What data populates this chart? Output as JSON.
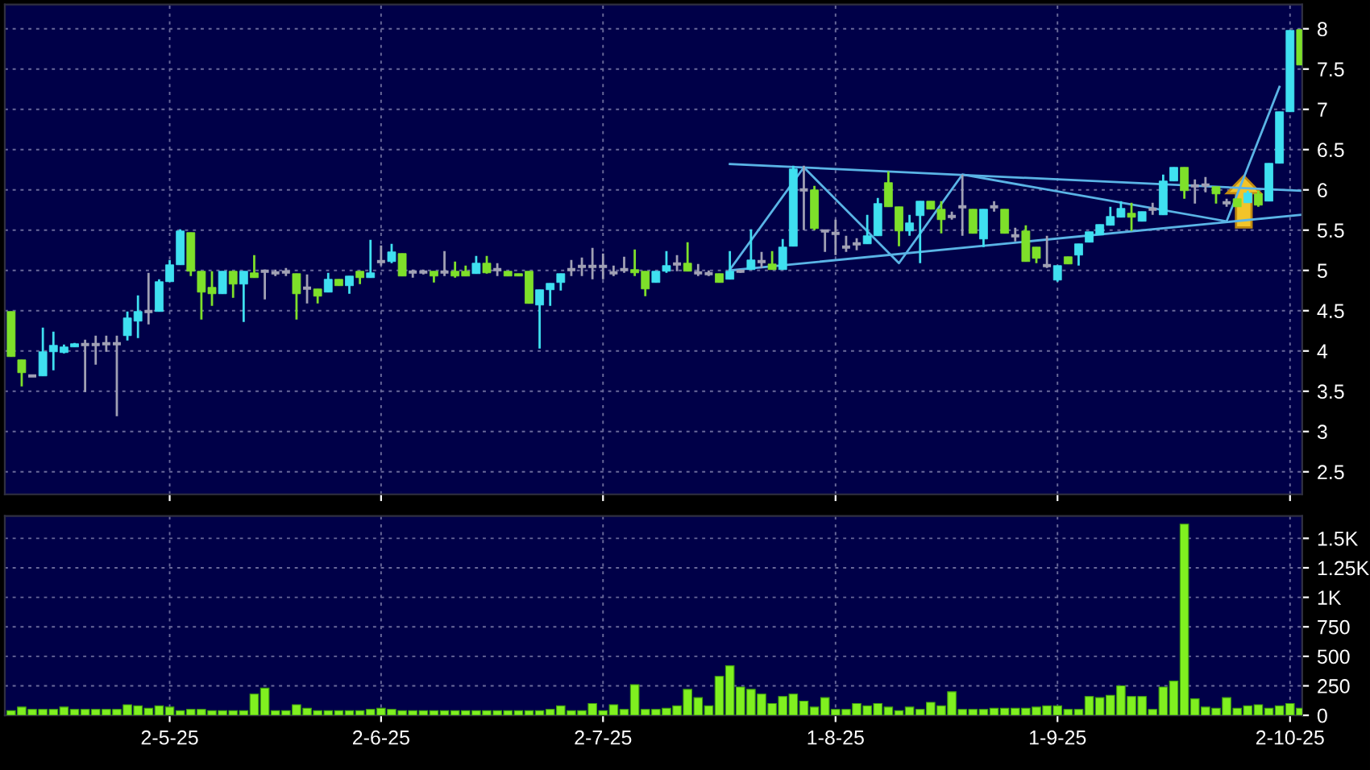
{
  "chart_data": [
    {
      "type": "candlestick",
      "tick_labels": "y",
      "grid": true,
      "ylim": [
        2.22,
        8.3
      ],
      "yticks": [
        2.5,
        3,
        3.5,
        4,
        4.5,
        5,
        5.5,
        6,
        6.5,
        7,
        7.5,
        8
      ],
      "categories": [
        null,
        null,
        null,
        null,
        null,
        null,
        null,
        null,
        null,
        null,
        null,
        null,
        null,
        null,
        null,
        null,
        null,
        null,
        null,
        null,
        null,
        null,
        null,
        null,
        null,
        null,
        null,
        null,
        null,
        null,
        null,
        null,
        null,
        null,
        null,
        null,
        null,
        null,
        null,
        null,
        null,
        null,
        null,
        null,
        null,
        null,
        null,
        null,
        null,
        null,
        null,
        null,
        null,
        null,
        null,
        null,
        null,
        null,
        null,
        null,
        null,
        null,
        null,
        null,
        null,
        null,
        null,
        null,
        null,
        null,
        null,
        null,
        null,
        null,
        null,
        null,
        null,
        null,
        null,
        null,
        null,
        null,
        null,
        null,
        null,
        null,
        null,
        null,
        null,
        null,
        null,
        null,
        null,
        null,
        null,
        null,
        null,
        null,
        null,
        null,
        null,
        null,
        null,
        null,
        null,
        null,
        null,
        null,
        null,
        null,
        null,
        null,
        null,
        null,
        null,
        null,
        null,
        null,
        null,
        null,
        null,
        null,
        null
      ],
      "series": [
        {
          "type": "candlestick",
          "ohlc": [
            [
              4.49,
              4.49,
              3.93,
              3.93
            ],
            [
              3.89,
              3.89,
              3.56,
              3.73
            ],
            [
              3.69,
              3.7,
              3.68,
              3.69
            ],
            [
              3.69,
              4.29,
              3.69,
              3.99
            ],
            [
              3.99,
              4.24,
              3.76,
              4.07
            ],
            [
              3.98,
              4.08,
              3.97,
              4.05
            ],
            [
              4.05,
              4.1,
              4.05,
              4.09
            ],
            [
              4.08,
              4.14,
              3.49,
              4.08
            ],
            [
              4.08,
              4.19,
              3.83,
              4.08
            ],
            [
              4.09,
              4.19,
              3.99,
              4.09
            ],
            [
              4.09,
              4.19,
              3.19,
              4.09
            ],
            [
              4.19,
              4.49,
              4.13,
              4.41
            ],
            [
              4.37,
              4.69,
              4.16,
              4.49
            ],
            [
              4.49,
              4.97,
              4.33,
              4.49
            ],
            [
              4.49,
              4.89,
              4.49,
              4.86
            ],
            [
              4.86,
              5.13,
              4.86,
              5.07
            ],
            [
              5.07,
              5.51,
              5.07,
              5.49
            ],
            [
              5.47,
              5.47,
              4.93,
              4.99
            ],
            [
              4.99,
              4.99,
              4.39,
              4.73
            ],
            [
              4.79,
              4.99,
              4.56,
              4.71
            ],
            [
              4.71,
              4.99,
              4.71,
              4.99
            ],
            [
              4.99,
              4.99,
              4.66,
              4.83
            ],
            [
              4.83,
              4.99,
              4.36,
              4.99
            ],
            [
              4.97,
              5.19,
              4.91,
              4.91
            ],
            [
              4.99,
              5.01,
              4.64,
              4.99
            ],
            [
              4.97,
              5.01,
              4.93,
              4.97
            ],
            [
              4.98,
              5.03,
              4.93,
              4.98
            ],
            [
              4.96,
              4.96,
              4.39,
              4.71
            ],
            [
              4.78,
              4.95,
              4.59,
              4.78
            ],
            [
              4.77,
              4.77,
              4.59,
              4.68
            ],
            [
              4.73,
              4.97,
              4.73,
              4.89
            ],
            [
              4.89,
              4.89,
              4.81,
              4.81
            ],
            [
              4.81,
              4.93,
              4.71,
              4.93
            ],
            [
              4.99,
              4.99,
              4.83,
              4.91
            ],
            [
              4.91,
              5.38,
              4.91,
              4.97
            ],
            [
              5.11,
              5.31,
              5.06,
              5.11
            ],
            [
              5.11,
              5.33,
              5.09,
              5.23
            ],
            [
              5.21,
              5.21,
              4.93,
              4.93
            ],
            [
              4.98,
              5.01,
              4.91,
              4.98
            ],
            [
              4.98,
              5.01,
              4.95,
              4.98
            ],
            [
              4.99,
              4.99,
              4.85,
              4.93
            ],
            [
              4.98,
              5.24,
              4.93,
              4.98
            ],
            [
              4.99,
              5.11,
              4.91,
              4.93
            ],
            [
              4.99,
              5.06,
              4.93,
              4.93
            ],
            [
              4.96,
              5.18,
              4.96,
              5.09
            ],
            [
              5.09,
              5.18,
              4.96,
              4.97
            ],
            [
              5.01,
              5.09,
              4.93,
              5.01
            ],
            [
              4.99,
              4.99,
              4.93,
              4.93
            ],
            [
              4.96,
              4.96,
              4.93,
              4.93
            ],
            [
              4.99,
              4.99,
              4.59,
              4.59
            ],
            [
              4.57,
              4.76,
              4.03,
              4.76
            ],
            [
              4.76,
              4.84,
              4.56,
              4.84
            ],
            [
              4.85,
              4.96,
              4.75,
              4.96
            ],
            [
              5.01,
              5.13,
              4.93,
              5.01
            ],
            [
              5.05,
              5.16,
              4.93,
              5.05
            ],
            [
              5.05,
              5.28,
              4.89,
              5.05
            ],
            [
              5.05,
              5.21,
              4.89,
              5.05
            ],
            [
              4.97,
              5.06,
              4.93,
              4.97
            ],
            [
              5.01,
              5.17,
              4.97,
              5.01
            ],
            [
              5.01,
              5.26,
              4.93,
              4.97
            ],
            [
              4.99,
              4.99,
              4.68,
              4.77
            ],
            [
              4.85,
              4.99,
              4.85,
              4.99
            ],
            [
              4.99,
              5.24,
              4.97,
              5.06
            ],
            [
              5.08,
              5.19,
              4.99,
              5.08
            ],
            [
              5.09,
              5.35,
              4.99,
              4.99
            ],
            [
              4.97,
              5.08,
              4.93,
              4.97
            ],
            [
              4.96,
              5.0,
              4.93,
              4.96
            ],
            [
              4.96,
              4.96,
              4.85,
              4.85
            ],
            [
              4.89,
              5.24,
              4.89,
              4.99
            ],
            [
              4.99,
              5.01,
              4.97,
              4.99
            ],
            [
              5.01,
              5.51,
              5.01,
              5.13
            ],
            [
              5.11,
              5.23,
              5.03,
              5.11
            ],
            [
              5.08,
              5.24,
              5.01,
              5.01
            ],
            [
              5.01,
              5.39,
              5.01,
              5.29
            ],
            [
              5.3,
              6.3,
              5.3,
              6.26
            ],
            [
              6.0,
              6.3,
              5.5,
              6.0
            ],
            [
              6.0,
              6.05,
              5.5,
              5.52
            ],
            [
              5.49,
              5.5,
              5.23,
              5.49
            ],
            [
              5.46,
              5.63,
              5.19,
              5.46
            ],
            [
              5.29,
              5.43,
              5.23,
              5.29
            ],
            [
              5.33,
              5.4,
              5.25,
              5.33
            ],
            [
              5.33,
              5.69,
              5.33,
              5.43
            ],
            [
              5.43,
              5.9,
              5.43,
              5.83
            ],
            [
              6.09,
              6.23,
              5.79,
              5.79
            ],
            [
              5.79,
              5.79,
              5.3,
              5.49
            ],
            [
              5.49,
              5.69,
              5.43,
              5.59
            ],
            [
              5.68,
              5.86,
              5.09,
              5.86
            ],
            [
              5.86,
              5.86,
              5.76,
              5.76
            ],
            [
              5.76,
              5.86,
              5.46,
              5.63
            ],
            [
              5.67,
              5.73,
              5.63,
              5.67
            ],
            [
              5.79,
              6.19,
              5.43,
              5.79
            ],
            [
              5.76,
              5.76,
              5.46,
              5.46
            ],
            [
              5.39,
              5.76,
              5.29,
              5.76
            ],
            [
              5.79,
              5.86,
              5.73,
              5.79
            ],
            [
              5.76,
              5.76,
              5.46,
              5.46
            ],
            [
              5.43,
              5.53,
              5.36,
              5.43
            ],
            [
              5.49,
              5.56,
              5.11,
              5.11
            ],
            [
              5.29,
              5.29,
              5.09,
              5.15
            ],
            [
              5.06,
              5.43,
              5.03,
              5.06
            ],
            [
              4.88,
              5.06,
              4.86,
              5.06
            ],
            [
              5.17,
              5.17,
              5.08,
              5.08
            ],
            [
              5.19,
              5.33,
              5.06,
              5.33
            ],
            [
              5.35,
              5.48,
              5.35,
              5.48
            ],
            [
              5.44,
              5.57,
              5.44,
              5.57
            ],
            [
              5.56,
              5.79,
              5.56,
              5.67
            ],
            [
              5.66,
              5.86,
              5.66,
              5.77
            ],
            [
              5.71,
              5.84,
              5.49,
              5.66
            ],
            [
              5.61,
              5.73,
              5.61,
              5.73
            ],
            [
              5.76,
              5.84,
              5.69,
              5.76
            ],
            [
              5.69,
              6.19,
              5.69,
              6.11
            ],
            [
              6.11,
              6.28,
              6.11,
              6.28
            ],
            [
              6.28,
              6.28,
              5.89,
              5.99
            ],
            [
              6.05,
              6.13,
              5.83,
              6.05
            ],
            [
              6.06,
              6.16,
              5.97,
              6.06
            ],
            [
              6.04,
              6.04,
              5.83,
              5.95
            ],
            [
              5.84,
              5.89,
              5.79,
              5.84
            ],
            [
              5.89,
              5.89,
              5.79,
              5.79
            ],
            [
              5.84,
              5.99,
              5.84,
              5.96
            ],
            [
              5.95,
              5.99,
              5.79,
              5.81
            ],
            [
              5.86,
              6.33,
              5.86,
              6.33
            ],
            [
              6.33,
              6.97,
              6.33,
              6.97
            ],
            [
              6.97,
              7.98,
              6.97,
              7.98
            ],
            [
              7.99,
              7.99,
              7.55,
              7.55
            ]
          ],
          "colors": [
            "#7ee02a",
            "#7ee02a",
            "#a0a0b4",
            "#3fe0f0",
            "#3fe0f0",
            "#3fe0f0",
            "#3fe0f0",
            "#a0a0b4",
            "#a0a0b4",
            "#a0a0b4",
            "#a0a0b4",
            "#3fe0f0",
            "#3fe0f0",
            "#a0a0b4",
            "#3fe0f0",
            "#3fe0f0",
            "#3fe0f0",
            "#7ee02a",
            "#7ee02a",
            "#7ee02a",
            "#3fe0f0",
            "#7ee02a",
            "#3fe0f0",
            "#7ee02a",
            "#a0a0b4",
            "#a0a0b4",
            "#a0a0b4",
            "#7ee02a",
            "#a0a0b4",
            "#7ee02a",
            "#3fe0f0",
            "#7ee02a",
            "#3fe0f0",
            "#7ee02a",
            "#3fe0f0",
            "#a0a0b4",
            "#3fe0f0",
            "#7ee02a",
            "#a0a0b4",
            "#a0a0b4",
            "#7ee02a",
            "#a0a0b4",
            "#7ee02a",
            "#7ee02a",
            "#3fe0f0",
            "#7ee02a",
            "#a0a0b4",
            "#7ee02a",
            "#7ee02a",
            "#7ee02a",
            "#3fe0f0",
            "#3fe0f0",
            "#3fe0f0",
            "#a0a0b4",
            "#a0a0b4",
            "#a0a0b4",
            "#a0a0b4",
            "#a0a0b4",
            "#a0a0b4",
            "#7ee02a",
            "#7ee02a",
            "#3fe0f0",
            "#3fe0f0",
            "#a0a0b4",
            "#7ee02a",
            "#a0a0b4",
            "#a0a0b4",
            "#7ee02a",
            "#3fe0f0",
            "#a0a0b4",
            "#3fe0f0",
            "#a0a0b4",
            "#7ee02a",
            "#3fe0f0",
            "#3fe0f0",
            "#a0a0b4",
            "#7ee02a",
            "#a0a0b4",
            "#a0a0b4",
            "#a0a0b4",
            "#a0a0b4",
            "#3fe0f0",
            "#3fe0f0",
            "#7ee02a",
            "#7ee02a",
            "#3fe0f0",
            "#3fe0f0",
            "#7ee02a",
            "#7ee02a",
            "#a0a0b4",
            "#a0a0b4",
            "#7ee02a",
            "#3fe0f0",
            "#a0a0b4",
            "#7ee02a",
            "#a0a0b4",
            "#7ee02a",
            "#7ee02a",
            "#a0a0b4",
            "#3fe0f0",
            "#7ee02a",
            "#3fe0f0",
            "#3fe0f0",
            "#3fe0f0",
            "#3fe0f0",
            "#3fe0f0",
            "#7ee02a",
            "#3fe0f0",
            "#a0a0b4",
            "#3fe0f0",
            "#3fe0f0",
            "#7ee02a",
            "#a0a0b4",
            "#a0a0b4",
            "#7ee02a",
            "#a0a0b4",
            "#7ee02a",
            "#3fe0f0",
            "#7ee02a",
            "#3fe0f0",
            "#3fe0f0",
            "#3fe0f0",
            "#7ee02a"
          ]
        },
        {
          "type": "line",
          "color": "#5ab4e6",
          "values": [
            null,
            null,
            null,
            null,
            null,
            null,
            null,
            null,
            null,
            null,
            null,
            null,
            null,
            null,
            null,
            null,
            null,
            null,
            null,
            null,
            null,
            null,
            null,
            null,
            null,
            null,
            null,
            null,
            null,
            null,
            null,
            null,
            null,
            null,
            null,
            null,
            null,
            null,
            null,
            null,
            null,
            null,
            null,
            null,
            null,
            null,
            null,
            null,
            null,
            null,
            null,
            null,
            null,
            null,
            null,
            null,
            null,
            null,
            null,
            null,
            null,
            null,
            null,
            null,
            null,
            null,
            null,
            null,
            6.32,
            null,
            null,
            null,
            null,
            null,
            null,
            null,
            null,
            null,
            null,
            null,
            null,
            null,
            null,
            null,
            null,
            null,
            null,
            null,
            null,
            null,
            null,
            null,
            null,
            null,
            null,
            null,
            null,
            null,
            null,
            null,
            null,
            null,
            null,
            null,
            null,
            null,
            null,
            null,
            null,
            null,
            null,
            null,
            null,
            null,
            null,
            null,
            null,
            null,
            null,
            null,
            null,
            null,
            5.99
          ]
        },
        {
          "type": "line",
          "color": "#5ab4e6",
          "values": [
            null,
            null,
            null,
            null,
            null,
            null,
            null,
            null,
            null,
            null,
            null,
            null,
            null,
            null,
            null,
            null,
            null,
            null,
            null,
            null,
            null,
            null,
            null,
            null,
            null,
            null,
            null,
            null,
            null,
            null,
            null,
            null,
            null,
            null,
            null,
            null,
            null,
            null,
            null,
            null,
            null,
            null,
            null,
            null,
            null,
            null,
            null,
            null,
            null,
            null,
            null,
            null,
            null,
            null,
            null,
            null,
            null,
            null,
            null,
            null,
            null,
            null,
            null,
            null,
            null,
            null,
            null,
            null,
            5.0,
            null,
            null,
            null,
            null,
            null,
            null,
            null,
            null,
            null,
            null,
            null,
            null,
            null,
            null,
            null,
            null,
            null,
            null,
            null,
            null,
            null,
            null,
            null,
            null,
            null,
            null,
            null,
            null,
            null,
            null,
            null,
            null,
            null,
            null,
            null,
            null,
            null,
            null,
            null,
            null,
            null,
            null,
            null,
            null,
            null,
            null,
            null,
            null,
            null,
            null,
            null,
            null,
            null,
            5.69
          ]
        },
        {
          "type": "line",
          "color": "#5ab4e6",
          "values": [
            null,
            null,
            null,
            null,
            null,
            null,
            null,
            null,
            null,
            null,
            null,
            null,
            null,
            null,
            null,
            null,
            null,
            null,
            null,
            null,
            null,
            null,
            null,
            null,
            null,
            null,
            null,
            null,
            null,
            null,
            null,
            null,
            null,
            null,
            null,
            null,
            null,
            null,
            null,
            null,
            null,
            null,
            null,
            null,
            null,
            null,
            null,
            null,
            null,
            null,
            null,
            null,
            null,
            null,
            null,
            null,
            null,
            null,
            null,
            null,
            null,
            null,
            null,
            null,
            null,
            null,
            null,
            null,
            5.01,
            null,
            null,
            null,
            null,
            null,
            null,
            6.28,
            null,
            null,
            null,
            null,
            null,
            null,
            null,
            null,
            5.09,
            null,
            null,
            null,
            null,
            null,
            6.19,
            null,
            null,
            null,
            null,
            null,
            null,
            null,
            null,
            null,
            null,
            null,
            null,
            null,
            null,
            null,
            null,
            null,
            null,
            null,
            null,
            null,
            null,
            null,
            null,
            5.61,
            null,
            null,
            null,
            null,
            7.28,
            null,
            null
          ]
        }
      ]
    },
    {
      "type": "bar",
      "grid": true,
      "color": "#80f020",
      "ylim": [
        0,
        1690
      ],
      "yticks": [
        0,
        250,
        500,
        750,
        {
          "value": 1000,
          "label": "1K"
        },
        {
          "value": 1250,
          "label": "1.25K"
        },
        {
          "value": 1500,
          "label": "1.5K"
        }
      ],
      "categories": [
        null,
        null,
        null,
        null,
        null,
        null,
        null,
        null,
        null,
        null,
        null,
        null,
        null,
        null,
        null,
        "2-5-25",
        null,
        null,
        null,
        null,
        null,
        null,
        null,
        null,
        null,
        null,
        null,
        null,
        null,
        null,
        null,
        null,
        null,
        null,
        null,
        "2-6-25",
        null,
        null,
        null,
        null,
        null,
        null,
        null,
        null,
        null,
        null,
        null,
        null,
        null,
        null,
        null,
        null,
        null,
        null,
        null,
        null,
        "2-7-25",
        null,
        null,
        null,
        null,
        null,
        null,
        null,
        null,
        null,
        null,
        null,
        null,
        null,
        null,
        null,
        null,
        null,
        null,
        null,
        null,
        null,
        "1-8-25",
        null,
        null,
        null,
        null,
        null,
        null,
        null,
        null,
        null,
        null,
        null,
        null,
        null,
        null,
        null,
        null,
        null,
        null,
        null,
        null,
        "1-9-25",
        null,
        null,
        null,
        null,
        null,
        null,
        null,
        null,
        null,
        null,
        null,
        null,
        null,
        null,
        null,
        null,
        null,
        null,
        null,
        null,
        null,
        "2-10-25",
        null
      ],
      "values": [
        40,
        70,
        50,
        50,
        50,
        70,
        50,
        50,
        50,
        50,
        50,
        90,
        80,
        60,
        80,
        70,
        40,
        50,
        50,
        40,
        40,
        40,
        40,
        180,
        230,
        40,
        40,
        90,
        60,
        40,
        40,
        40,
        40,
        40,
        50,
        60,
        50,
        40,
        40,
        40,
        40,
        40,
        40,
        40,
        40,
        40,
        40,
        40,
        40,
        40,
        40,
        50,
        80,
        40,
        40,
        100,
        40,
        90,
        50,
        260,
        50,
        50,
        60,
        80,
        220,
        150,
        80,
        330,
        420,
        240,
        220,
        180,
        100,
        160,
        180,
        120,
        70,
        150,
        50,
        50,
        100,
        80,
        100,
        70,
        40,
        70,
        50,
        110,
        80,
        200,
        50,
        50,
        50,
        60,
        60,
        60,
        60,
        70,
        80,
        80,
        50,
        50,
        160,
        150,
        170,
        250,
        160,
        160,
        50,
        240,
        290,
        1620,
        140,
        70,
        60,
        150,
        60,
        80,
        90,
        60,
        80,
        100,
        60
      ]
    }
  ]
}
